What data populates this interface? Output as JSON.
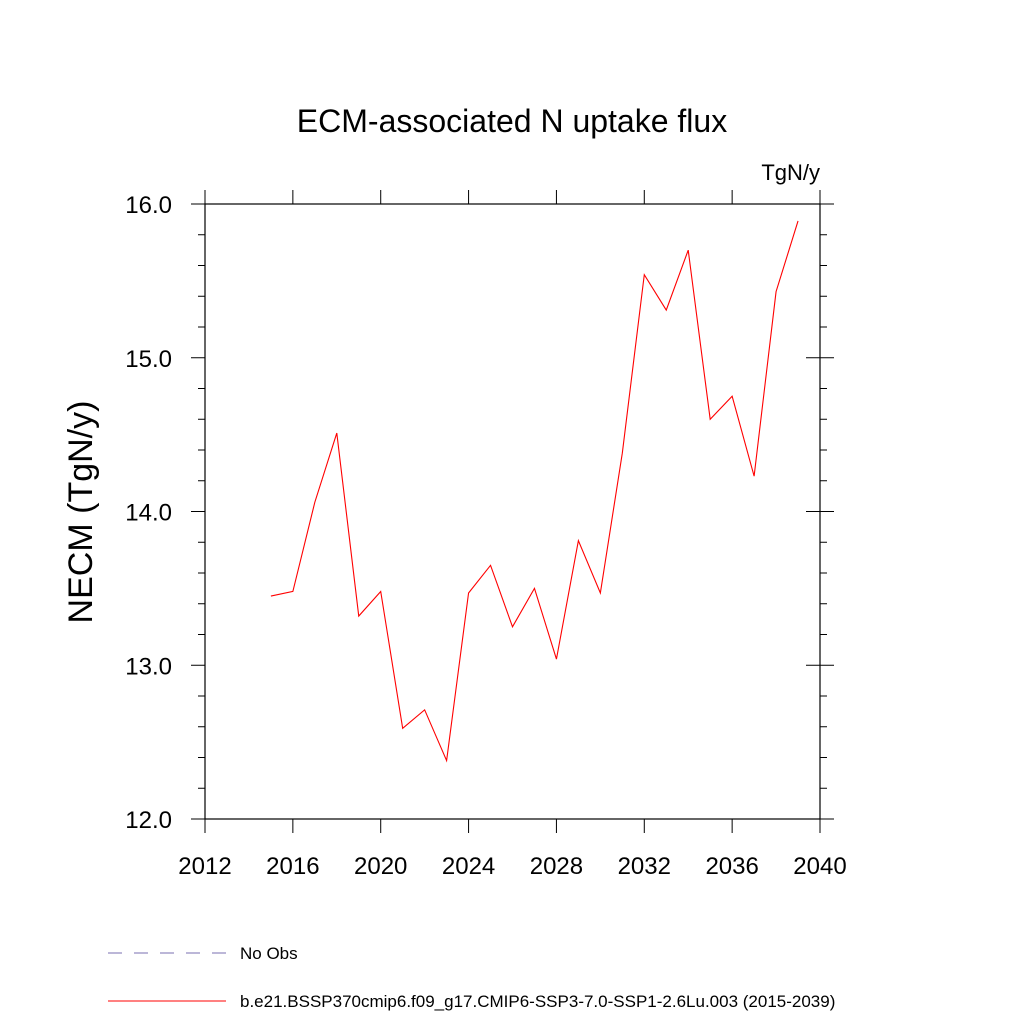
{
  "chart_data": {
    "type": "line",
    "title": "ECM-associated N uptake flux",
    "units_label": "TgN/y",
    "ylabel": "NECM  (TgN/y)",
    "xlabel": "",
    "xlim": [
      2012,
      2040
    ],
    "ylim": [
      12.0,
      16.0
    ],
    "x_ticks": [
      2012,
      2016,
      2020,
      2024,
      2028,
      2032,
      2036,
      2040
    ],
    "x_tick_labels": [
      "2012",
      "2016",
      "2020",
      "2024",
      "2028",
      "2032",
      "2036",
      "2040"
    ],
    "y_ticks": [
      12.0,
      13.0,
      14.0,
      15.0,
      16.0
    ],
    "y_tick_labels": [
      "12.0",
      "13.0",
      "14.0",
      "15.0",
      "16.0"
    ],
    "grid": false,
    "series": [
      {
        "name": "b.e21.BSSP370cmip6.f09_g17.CMIP6-SSP3-7.0-SSP1-2.6Lu.003 (2015-2039)",
        "color": "#ff0000",
        "x": [
          2015,
          2016,
          2017,
          2018,
          2019,
          2020,
          2021,
          2022,
          2023,
          2024,
          2025,
          2026,
          2027,
          2028,
          2029,
          2030,
          2031,
          2032,
          2033,
          2034,
          2035,
          2036,
          2037,
          2038,
          2039
        ],
        "values": [
          13.45,
          13.48,
          14.06,
          14.51,
          13.32,
          13.48,
          12.59,
          12.71,
          12.38,
          13.47,
          13.65,
          13.25,
          13.5,
          13.04,
          13.81,
          13.47,
          14.38,
          15.54,
          15.31,
          15.7,
          14.6,
          14.75,
          14.23,
          15.43,
          15.89
        ]
      }
    ],
    "legend": [
      {
        "label": "No Obs",
        "color": "#7a6fb0",
        "style": "dashed"
      },
      {
        "label": "b.e21.BSSP370cmip6.f09_g17.CMIP6-SSP3-7.0-SSP1-2.6Lu.003 (2015-2039)",
        "color": "#ff0000",
        "style": "solid"
      }
    ],
    "legend_position": "bottom"
  }
}
